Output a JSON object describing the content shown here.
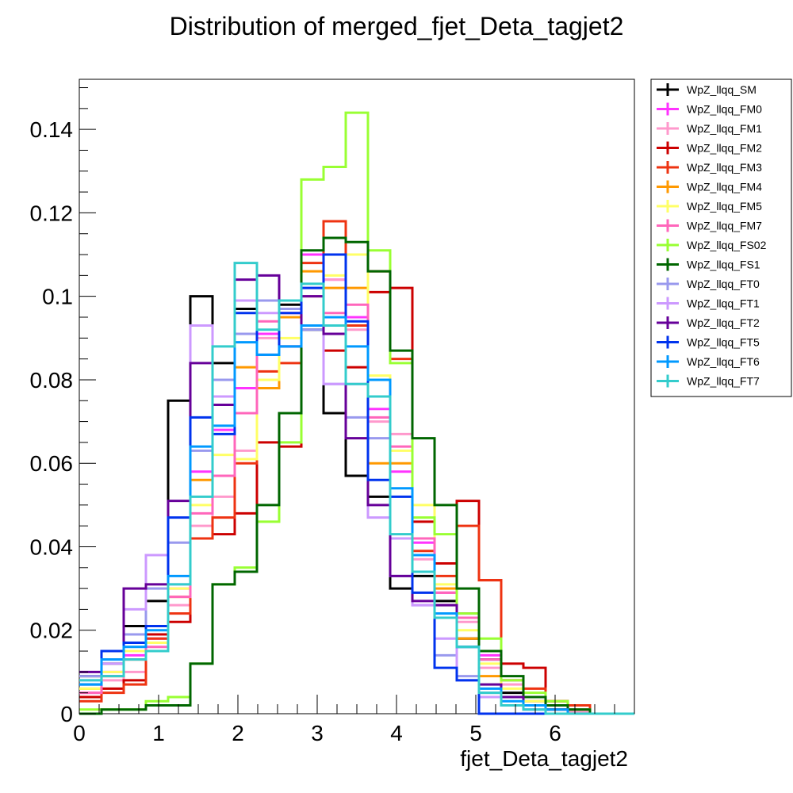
{
  "chart_data": {
    "type": "line",
    "title": "Distribution of merged_fjet_Deta_tagjet2",
    "xlabel": "fjet_Deta_tagjet2",
    "ylabel": "",
    "xlim": [
      0,
      7
    ],
    "ylim": [
      0,
      0.152
    ],
    "x_ticks": [
      "0",
      "1",
      "2",
      "3",
      "4",
      "5",
      "6"
    ],
    "y_ticks": [
      "0",
      "0.02",
      "0.04",
      "0.06",
      "0.08",
      "0.1",
      "0.12",
      "0.14"
    ],
    "y_tick_values": [
      0,
      0.02,
      0.04,
      0.06,
      0.08,
      0.1,
      0.12,
      0.14
    ],
    "bin_edges": [
      0,
      0.28,
      0.56,
      0.84,
      1.12,
      1.4,
      1.68,
      1.96,
      2.24,
      2.52,
      2.8,
      3.08,
      3.36,
      3.64,
      3.92,
      4.2,
      4.48,
      4.76,
      5.04,
      5.32,
      5.6,
      5.88,
      6.16,
      6.44,
      6.72,
      7.0
    ],
    "legend_position": "right",
    "series": [
      {
        "name": "WpZ_llqq_SM",
        "color": "#000000",
        "values": [
          0.009,
          0.012,
          0.021,
          0.027,
          0.075,
          0.1,
          0.084,
          0.097,
          0.099,
          0.098,
          0.092,
          0.072,
          0.057,
          0.052,
          0.03,
          0.033,
          0.027,
          0.018,
          0.013,
          0.005,
          0.003,
          0.001,
          0.0005,
          0,
          0
        ]
      },
      {
        "name": "WpZ_llqq_FM0",
        "color": "#ff33ff",
        "values": [
          0.005,
          0.01,
          0.014,
          0.018,
          0.03,
          0.058,
          0.068,
          0.078,
          0.091,
          0.096,
          0.11,
          0.104,
          0.095,
          0.073,
          0.058,
          0.041,
          0.029,
          0.024,
          0.014,
          0.008,
          0.004,
          0.002,
          0.001,
          0,
          0
        ]
      },
      {
        "name": "WpZ_llqq_FM1",
        "color": "#ff99cc",
        "values": [
          0.004,
          0.008,
          0.01,
          0.015,
          0.026,
          0.045,
          0.052,
          0.063,
          0.09,
          0.096,
          0.102,
          0.104,
          0.092,
          0.07,
          0.067,
          0.037,
          0.026,
          0.022,
          0.011,
          0.007,
          0.003,
          0.001,
          0.0005,
          0,
          0
        ]
      },
      {
        "name": "WpZ_llqq_FM2",
        "color": "#cc0000",
        "values": [
          0.004,
          0.006,
          0.008,
          0.019,
          0.022,
          0.042,
          0.043,
          0.048,
          0.065,
          0.064,
          0.093,
          0.087,
          0.083,
          0.101,
          0.102,
          0.046,
          0.036,
          0.051,
          0.032,
          0.012,
          0.011,
          0.003,
          0.002,
          0,
          0
        ]
      },
      {
        "name": "WpZ_llqq_FM3",
        "color": "#ee3311",
        "values": [
          0.003,
          0.005,
          0.007,
          0.018,
          0.024,
          0.042,
          0.047,
          0.06,
          0.082,
          0.084,
          0.108,
          0.118,
          0.093,
          0.106,
          0.085,
          0.039,
          0.033,
          0.045,
          0.032,
          0.008,
          0.006,
          0.003,
          0.002,
          0,
          0
        ]
      },
      {
        "name": "WpZ_llqq_FM4",
        "color": "#ff9900",
        "values": [
          0.006,
          0.009,
          0.013,
          0.015,
          0.028,
          0.056,
          0.076,
          0.083,
          0.078,
          0.095,
          0.106,
          0.102,
          0.102,
          0.06,
          0.06,
          0.038,
          0.03,
          0.018,
          0.009,
          0.004,
          0.002,
          0.001,
          0,
          0,
          0
        ]
      },
      {
        "name": "WpZ_llqq_FM5",
        "color": "#ffff66",
        "values": [
          0.006,
          0.01,
          0.015,
          0.017,
          0.03,
          0.05,
          0.062,
          0.061,
          0.08,
          0.09,
          0.1,
          0.105,
          0.11,
          0.081,
          0.063,
          0.05,
          0.031,
          0.02,
          0.012,
          0.006,
          0.003,
          0.001,
          0,
          0,
          0
        ]
      },
      {
        "name": "WpZ_llqq_FM7",
        "color": "#ff66bb",
        "values": [
          0.005,
          0.009,
          0.013,
          0.016,
          0.028,
          0.048,
          0.057,
          0.072,
          0.094,
          0.099,
          0.1,
          0.096,
          0.098,
          0.071,
          0.064,
          0.042,
          0.029,
          0.023,
          0.013,
          0.008,
          0.004,
          0.002,
          0.001,
          0,
          0
        ]
      },
      {
        "name": "WpZ_llqq_FS02",
        "color": "#99ff33",
        "values": [
          0.001,
          0.001,
          0.001,
          0.003,
          0.004,
          0.012,
          0.031,
          0.035,
          0.046,
          0.065,
          0.128,
          0.131,
          0.144,
          0.111,
          0.084,
          0.047,
          0.043,
          0.024,
          0.018,
          0.008,
          0.005,
          0.003,
          0.001,
          0,
          0
        ]
      },
      {
        "name": "WpZ_llqq_FS1",
        "color": "#006600",
        "values": [
          0.0,
          0.001,
          0.001,
          0.002,
          0.002,
          0.012,
          0.031,
          0.034,
          0.05,
          0.072,
          0.111,
          0.114,
          0.113,
          0.106,
          0.087,
          0.066,
          0.05,
          0.03,
          0.015,
          0.009,
          0.004,
          0.002,
          0.001,
          0,
          0
        ]
      },
      {
        "name": "WpZ_llqq_FT0",
        "color": "#9999ee",
        "values": [
          0.009,
          0.013,
          0.019,
          0.03,
          0.041,
          0.063,
          0.08,
          0.091,
          0.099,
          0.097,
          0.092,
          0.079,
          0.071,
          0.066,
          0.033,
          0.026,
          0.014,
          0.009,
          0.005,
          0.002,
          0.001,
          0,
          0,
          0,
          0
        ]
      },
      {
        "name": "WpZ_llqq_FT1",
        "color": "#cc99ff",
        "values": [
          0.008,
          0.012,
          0.025,
          0.038,
          0.031,
          0.093,
          0.076,
          0.099,
          0.096,
          0.088,
          0.093,
          0.079,
          0.079,
          0.047,
          0.042,
          0.026,
          0.018,
          0.008,
          0.004,
          0.002,
          0.001,
          0,
          0,
          0,
          0
        ]
      },
      {
        "name": "WpZ_llqq_FT2",
        "color": "#660099",
        "values": [
          0.01,
          0.015,
          0.03,
          0.031,
          0.051,
          0.084,
          0.074,
          0.104,
          0.105,
          0.088,
          0.1,
          0.091,
          0.066,
          0.05,
          0.033,
          0.027,
          0.026,
          0.016,
          0.007,
          0.004,
          0.002,
          0.001,
          0,
          0,
          0
        ]
      },
      {
        "name": "WpZ_llqq_FT5",
        "color": "#0033ee",
        "values": [
          0.007,
          0.015,
          0.017,
          0.021,
          0.047,
          0.071,
          0.067,
          0.096,
          0.086,
          0.096,
          0.102,
          0.11,
          0.094,
          0.056,
          0.052,
          0.029,
          0.011,
          0.008,
          0,
          0,
          0,
          0,
          0,
          0,
          0
        ]
      },
      {
        "name": "WpZ_llqq_FT6",
        "color": "#0099ff",
        "values": [
          0.007,
          0.013,
          0.016,
          0.02,
          0.033,
          0.064,
          0.069,
          0.089,
          0.086,
          0.088,
          0.093,
          0.095,
          0.088,
          0.08,
          0.054,
          0.038,
          0.024,
          0.016,
          0.006,
          0.003,
          0.002,
          0.001,
          0,
          0,
          0
        ]
      },
      {
        "name": "WpZ_llqq_FT7",
        "color": "#33cccc",
        "values": [
          0.008,
          0.009,
          0.013,
          0.015,
          0.031,
          0.052,
          0.088,
          0.108,
          0.092,
          0.099,
          0.103,
          0.093,
          0.079,
          0.076,
          0.043,
          0.034,
          0.023,
          0.016,
          0.005,
          0.002,
          0.001,
          0,
          0,
          0,
          0
        ]
      }
    ]
  }
}
